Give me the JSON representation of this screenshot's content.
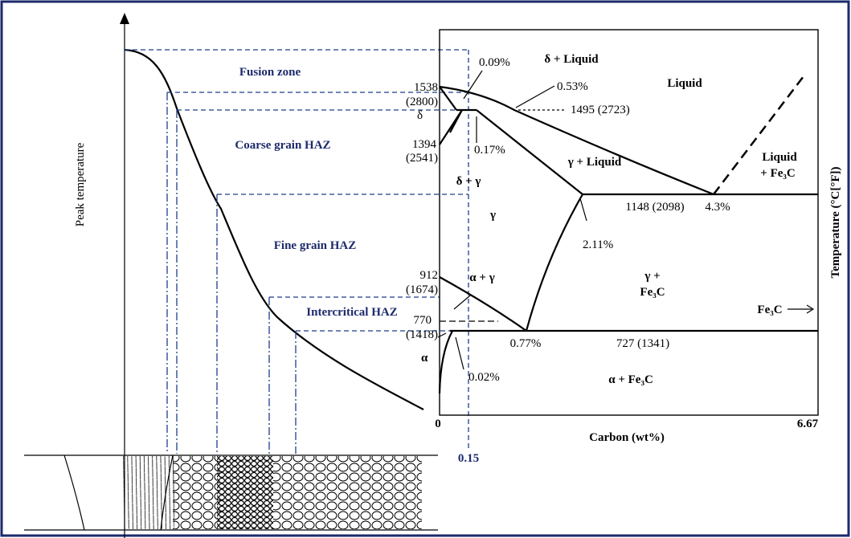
{
  "left_axis": {
    "label": "Peak temperature"
  },
  "zones": [
    "Fusion zone",
    "Coarse grain HAZ",
    "Fine grain HAZ",
    "Intercritical HAZ"
  ],
  "phase_diagram": {
    "x_axis_label": "Carbon (wt%)",
    "y_axis_label": "Temperature (°C[°F])",
    "x_start": "0",
    "x_end": "6.67",
    "marker": "0.15",
    "phases": {
      "liquid": "Liquid",
      "delta_liquid": "δ + Liquid",
      "delta": "δ",
      "delta_gamma": "δ + γ",
      "gamma": "γ",
      "gamma_liquid": "γ + Liquid",
      "liquid_fe3c_1": "Liquid",
      "liquid_fe3c_2": "+ Fe₃C",
      "alpha_gamma": "α + γ",
      "gamma_fe3c_1": "γ +",
      "gamma_fe3c_2": "Fe₃C",
      "fe3c": "Fe₃C",
      "alpha": "α",
      "alpha_fe3c": "α + Fe₃C"
    },
    "points": {
      "c009": "0.09%",
      "c053": "0.53%",
      "t1538": "1538",
      "f2800": "(2800)",
      "t1495": "1495 (2723)",
      "t1394": "1394",
      "f2541": "(2541)",
      "c017": "0.17%",
      "t1148": "1148 (2098)",
      "c43": "4.3%",
      "c211": "2.11%",
      "t912": "912",
      "f1674": "(1674)",
      "t770": "770",
      "f1418": "(1418)",
      "c077": "0.77%",
      "t727": "727 (1341)",
      "c002": "0.02%"
    }
  }
}
